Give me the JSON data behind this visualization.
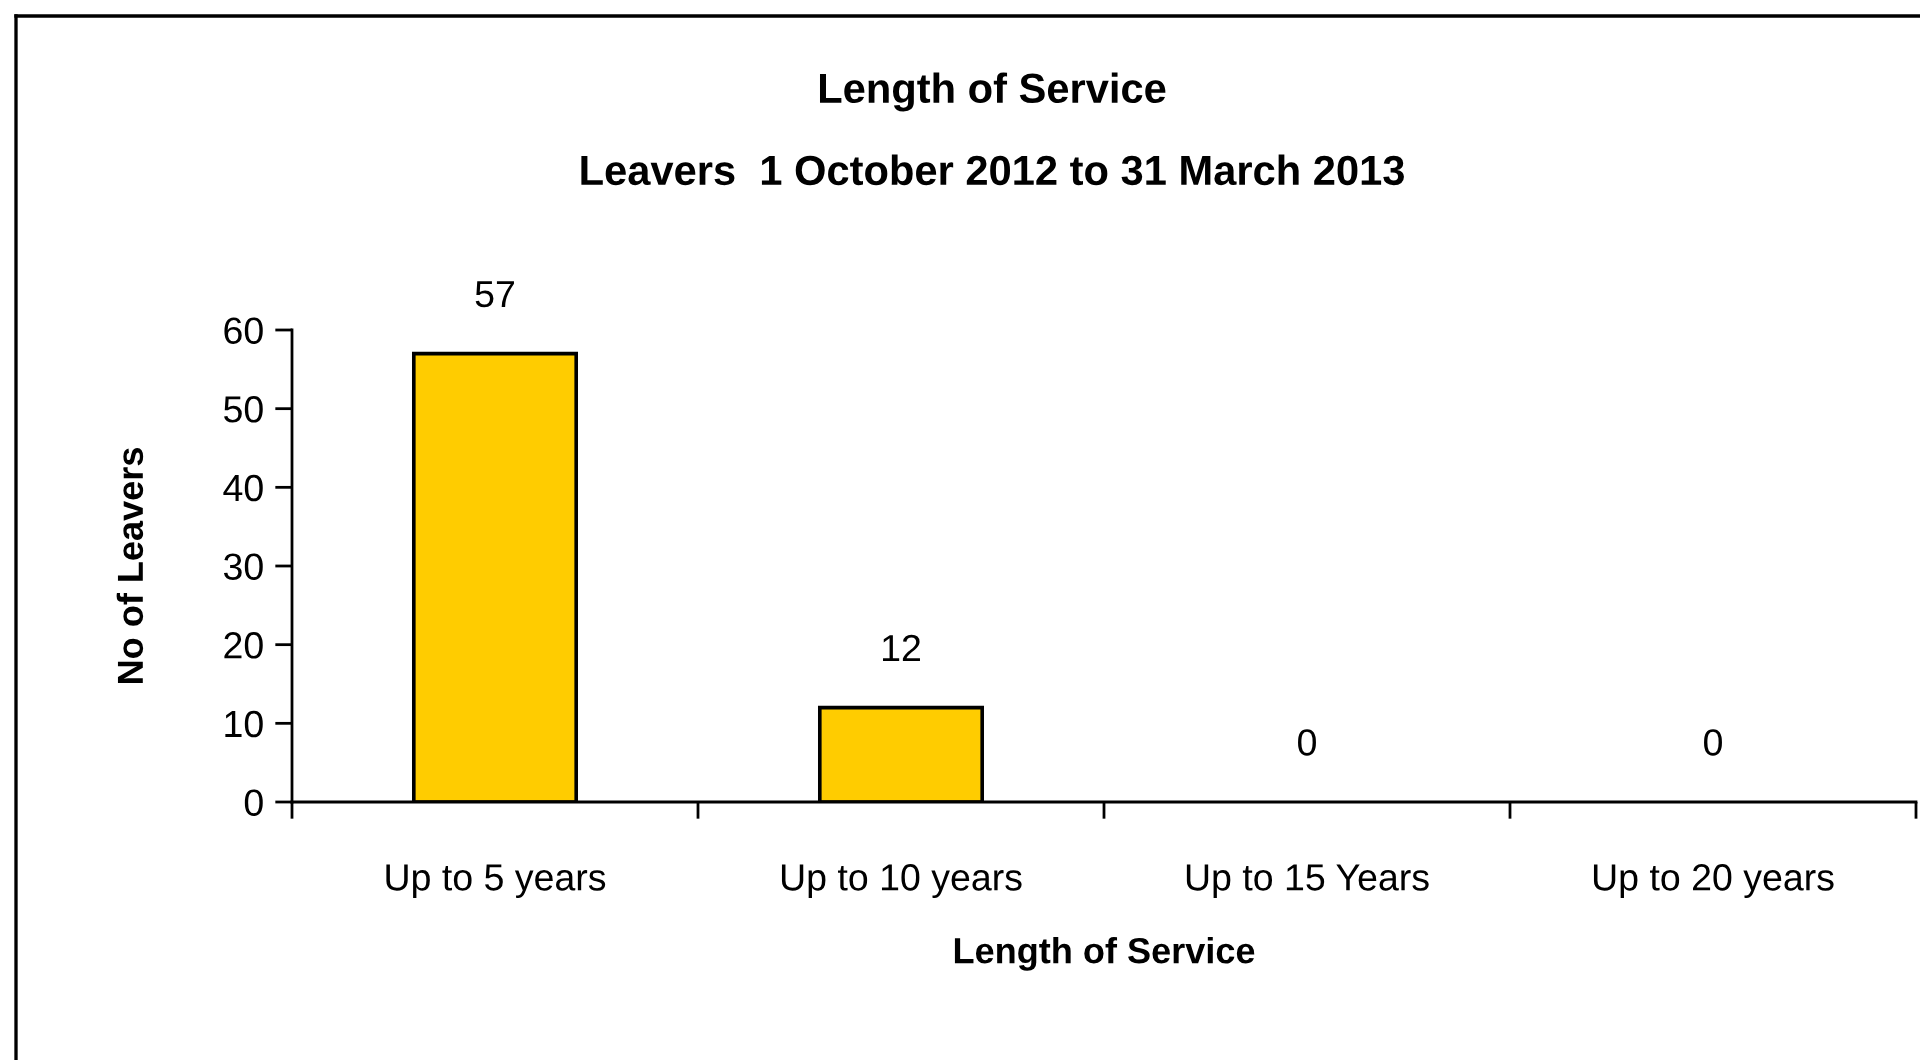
{
  "chart_data": {
    "type": "bar",
    "title": "Length of Service",
    "subtitle": "Leavers  1 October 2012 to 31 March 2013",
    "xlabel": "Length of Service",
    "ylabel": "No of Leavers",
    "categories": [
      "Up to 5 years",
      "Up to 10 years",
      "Up to 15 Years",
      "Up to 20 years"
    ],
    "values": [
      57,
      12,
      0,
      0
    ],
    "color": "#ffcc00",
    "data_labels": true,
    "ylim": [
      0,
      60
    ],
    "yticks": [
      0,
      10,
      20,
      30,
      40,
      50,
      60
    ]
  }
}
